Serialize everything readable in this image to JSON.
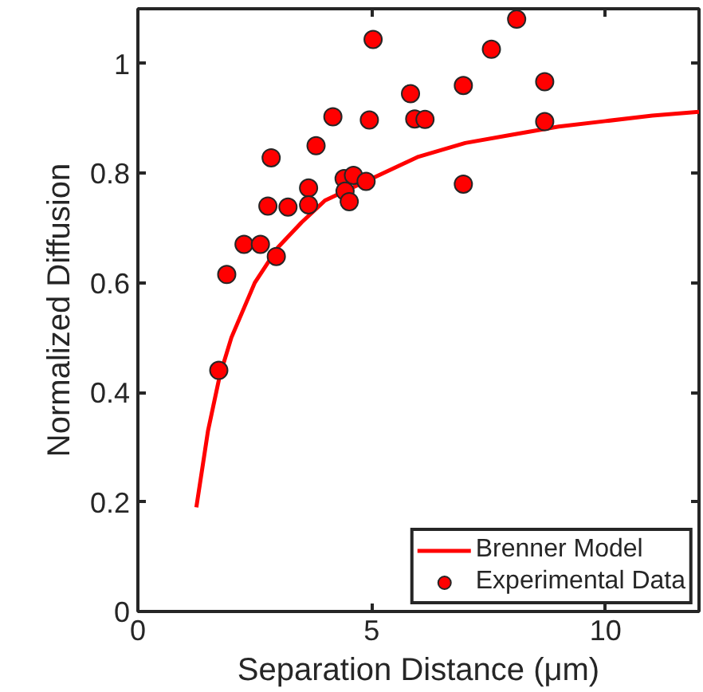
{
  "chart_data": {
    "type": "scatter",
    "xlabel": "Separation Distance (μm)",
    "ylabel": "Normalized Diffusion",
    "xlim": [
      0,
      12
    ],
    "ylim": [
      0,
      1.1
    ],
    "xticks": [
      0,
      5,
      10
    ],
    "yticks": [
      0,
      0.2,
      0.4,
      0.6,
      0.8,
      1
    ],
    "grid": false,
    "legend": "bottom right",
    "marker": "circle",
    "series": [
      {
        "name": "Brenner Model",
        "type": "line",
        "color": "#ff0000",
        "line_style": "solid",
        "marker": "none",
        "x": [
          1.25,
          1.5,
          1.75,
          2,
          2.5,
          3,
          3.5,
          4,
          5,
          6,
          7,
          8,
          9,
          10,
          11,
          12
        ],
        "values": [
          0.19,
          0.33,
          0.43,
          0.5,
          0.6,
          0.665,
          0.71,
          0.75,
          0.79,
          0.83,
          0.855,
          0.87,
          0.885,
          0.895,
          0.905,
          0.912
        ]
      },
      {
        "name": "Experimental Data",
        "color": "#ff0000",
        "x": [
          1.73,
          1.9,
          2.27,
          2.62,
          2.96,
          2.78,
          3.21,
          2.85,
          3.65,
          3.65,
          3.81,
          4.17,
          4.41,
          4.61,
          4.43,
          4.52,
          4.88,
          4.95,
          5.03,
          5.83,
          5.92,
          6.14,
          6.96,
          6.96,
          7.56,
          8.1,
          8.7,
          8.7
        ],
        "values": [
          0.44,
          0.615,
          0.67,
          0.67,
          0.648,
          0.74,
          0.738,
          0.828,
          0.773,
          0.742,
          0.85,
          0.903,
          0.79,
          0.796,
          0.767,
          0.748,
          0.785,
          0.897,
          1.044,
          0.945,
          0.899,
          0.898,
          0.96,
          0.78,
          1.026,
          1.081,
          0.967,
          0.894
        ]
      }
    ]
  }
}
